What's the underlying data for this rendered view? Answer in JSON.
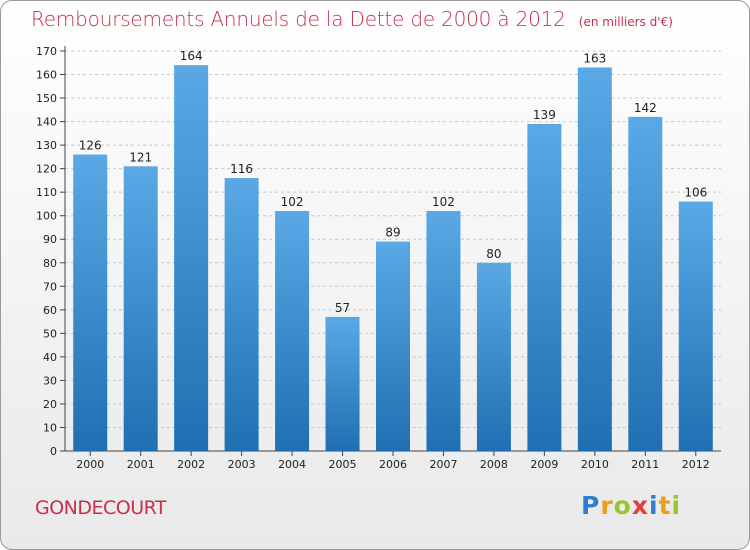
{
  "title": "Remboursements Annuels de la Dette de 2000 à 2012",
  "subtitle": "(en milliers d'€)",
  "commune": "GONDECOURT",
  "brand": {
    "text": "Proxiti",
    "letters": [
      {
        "ch": "P",
        "color": "#2f7fd1"
      },
      {
        "ch": "r",
        "color": "#e8a01a"
      },
      {
        "ch": "o",
        "color": "#9ac531"
      },
      {
        "ch": "x",
        "color": "#e0403b"
      },
      {
        "ch": "i",
        "color": "#2f7fd1"
      },
      {
        "ch": "t",
        "color": "#e8a01a"
      },
      {
        "ch": "i",
        "color": "#9ac531"
      }
    ]
  },
  "colors": {
    "bar_light": "#5aa9e6",
    "bar_dark": "#1f6fb2",
    "title": "#c8304a",
    "grid": "#c8c8c8"
  },
  "chart_data": {
    "type": "bar",
    "title": "Remboursements Annuels de la Dette de 2000 à 2012",
    "subtitle": "(en milliers d'€)",
    "categories": [
      "2000",
      "2001",
      "2002",
      "2003",
      "2004",
      "2005",
      "2006",
      "2007",
      "2008",
      "2009",
      "2010",
      "2011",
      "2012"
    ],
    "values": [
      126,
      121,
      164,
      116,
      102,
      57,
      89,
      102,
      80,
      139,
      163,
      142,
      106
    ],
    "ylim": [
      0,
      170
    ],
    "yticks": [
      0,
      10,
      20,
      30,
      40,
      50,
      60,
      70,
      80,
      90,
      100,
      110,
      120,
      130,
      140,
      150,
      160,
      170
    ],
    "grid": true,
    "xlabel": "",
    "ylabel": ""
  }
}
